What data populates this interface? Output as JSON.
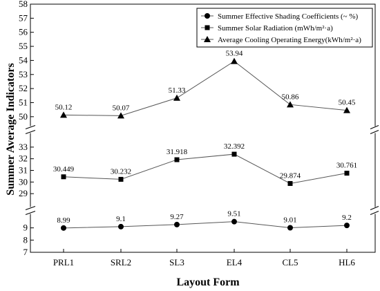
{
  "chart_data": {
    "type": "line",
    "xlabel": "Layout Form",
    "ylabel": "Summer Average Indicators",
    "categories": [
      "PRL1",
      "SRL2",
      "SL3",
      "EL4",
      "CL5",
      "HL6"
    ],
    "axis_breaks": [
      [
        10,
        28
      ],
      [
        34,
        50
      ]
    ],
    "legend_position": "top-right",
    "grid": false,
    "series": [
      {
        "name": "Summer Effective Shading Coefficients (~ %)",
        "marker": "circle",
        "values": [
          8.99,
          9.1,
          9.27,
          9.51,
          9.01,
          9.2
        ],
        "labels": [
          "8.99",
          "9.1",
          "9.27",
          "9.51",
          "9.01",
          "9.2"
        ],
        "segment": {
          "ylim": [
            7,
            10
          ],
          "ticks": [
            7,
            8,
            9
          ]
        }
      },
      {
        "name": "Summer Solar Radiation (mWh/m²·a)",
        "marker": "square",
        "values": [
          30.449,
          30.232,
          31.918,
          32.392,
          29.874,
          30.761
        ],
        "labels": [
          "30.449",
          "30.232",
          "31.918",
          "32.392",
          "29.874",
          "30.761"
        ],
        "segment": {
          "ylim": [
            28,
            34
          ],
          "ticks": [
            29,
            30,
            31,
            32,
            33
          ]
        }
      },
      {
        "name": "Average Cooling Operating Energy(kWh/m²·a)",
        "marker": "triangle",
        "values": [
          50.12,
          50.07,
          51.33,
          53.94,
          50.86,
          50.45
        ],
        "labels": [
          "50.12",
          "50.07",
          "51.33",
          "53.94",
          "50.86",
          "50.45"
        ],
        "segment": {
          "ylim": [
            49.5,
            58
          ],
          "ticks": [
            50,
            51,
            52,
            53,
            54,
            55,
            56,
            57,
            58
          ]
        }
      }
    ]
  }
}
